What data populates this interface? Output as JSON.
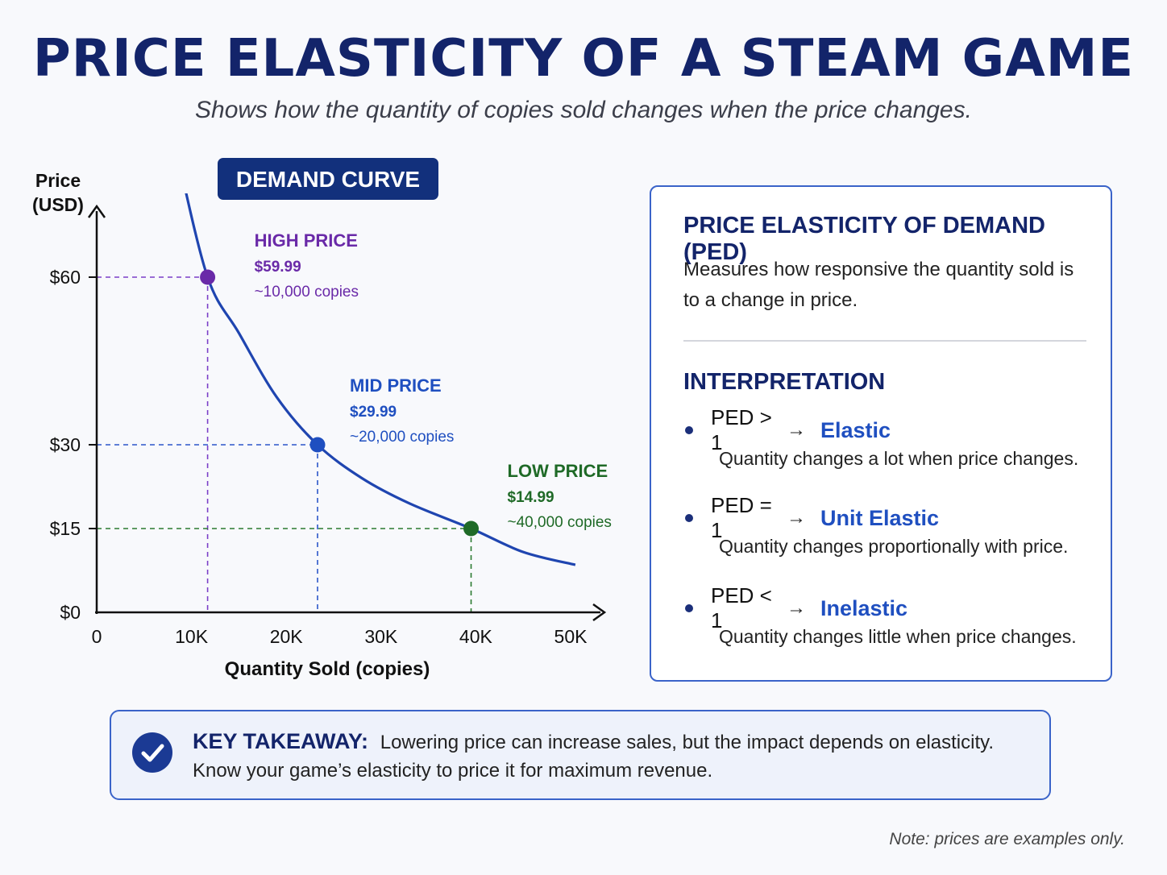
{
  "header": {
    "title": "PRICE ELASTICITY OF A STEAM GAME",
    "subtitle": "Shows how the quantity of copies sold changes when the price changes."
  },
  "chart_data": {
    "type": "line",
    "title": "DEMAND CURVE",
    "ylabel_line1": "Price",
    "ylabel_line2": "(USD)",
    "xlabel": "Quantity Sold (copies)",
    "xlim": [
      0,
      52000
    ],
    "ylim": [
      0,
      72
    ],
    "x_ticks": [
      {
        "value": 0,
        "label": "0"
      },
      {
        "value": 10000,
        "label": "10K"
      },
      {
        "value": 20000,
        "label": "20K"
      },
      {
        "value": 30000,
        "label": "30K"
      },
      {
        "value": 40000,
        "label": "40K"
      },
      {
        "value": 50000,
        "label": "50K"
      }
    ],
    "y_ticks": [
      {
        "value": 0,
        "label": "$0"
      },
      {
        "value": 15,
        "label": "$15"
      },
      {
        "value": 30,
        "label": "$30"
      },
      {
        "value": 60,
        "label": "$60"
      }
    ],
    "curve": {
      "name": "Demand",
      "color": "#1f45b0",
      "x": [
        8500,
        11700,
        15000,
        19000,
        23300,
        28000,
        33000,
        39500,
        45000,
        50500
      ],
      "y": [
        82,
        60,
        50,
        38.5,
        30,
        24,
        19.5,
        15,
        10.8,
        8.5
      ]
    },
    "points": [
      {
        "label": "HIGH PRICE",
        "price": "$59.99",
        "copies": "~10,000 copies",
        "x": 11700,
        "y": 60,
        "color": "#6a2aa8",
        "guide_color": "#7b3fc8"
      },
      {
        "label": "MID PRICE",
        "price": "$29.99",
        "copies": "~20,000 copies",
        "x": 23300,
        "y": 30,
        "color": "#1f4fc0",
        "guide_color": "#2c56c9"
      },
      {
        "label": "LOW PRICE",
        "price": "$14.99",
        "copies": "~40,000 copies",
        "x": 39500,
        "y": 15,
        "color": "#1f6a27",
        "guide_color": "#2a7a30"
      }
    ],
    "grid": false,
    "legend": "none"
  },
  "ped": {
    "heading": "PRICE ELASTICITY OF DEMAND (PED)",
    "description": "Measures how responsive the quantity sold is to a change in price.",
    "interpretation_heading": "INTERPRETATION",
    "items": [
      {
        "condition": "PED > 1",
        "arrow": "→",
        "term": "Elastic",
        "description": "Quantity changes a lot when price changes."
      },
      {
        "condition": "PED = 1",
        "arrow": "→",
        "term": "Unit Elastic",
        "description": "Quantity changes proportionally with price."
      },
      {
        "condition": "PED < 1",
        "arrow": "→",
        "term": "Inelastic",
        "description": "Quantity changes little when price changes."
      }
    ]
  },
  "takeaway": {
    "icon": "check-circle-icon",
    "label": "KEY TAKEAWAY:",
    "line1": "Lowering price can increase sales, but the impact depends on elasticity.",
    "line2": "Know your game’s elasticity to price it for maximum revenue."
  },
  "note": "Note: prices are examples only.",
  "colors": {
    "navy": "#13246a",
    "accent_blue": "#3a63c9",
    "high": "#6a2aa8",
    "mid": "#1f4fc0",
    "low": "#1f6a27"
  }
}
